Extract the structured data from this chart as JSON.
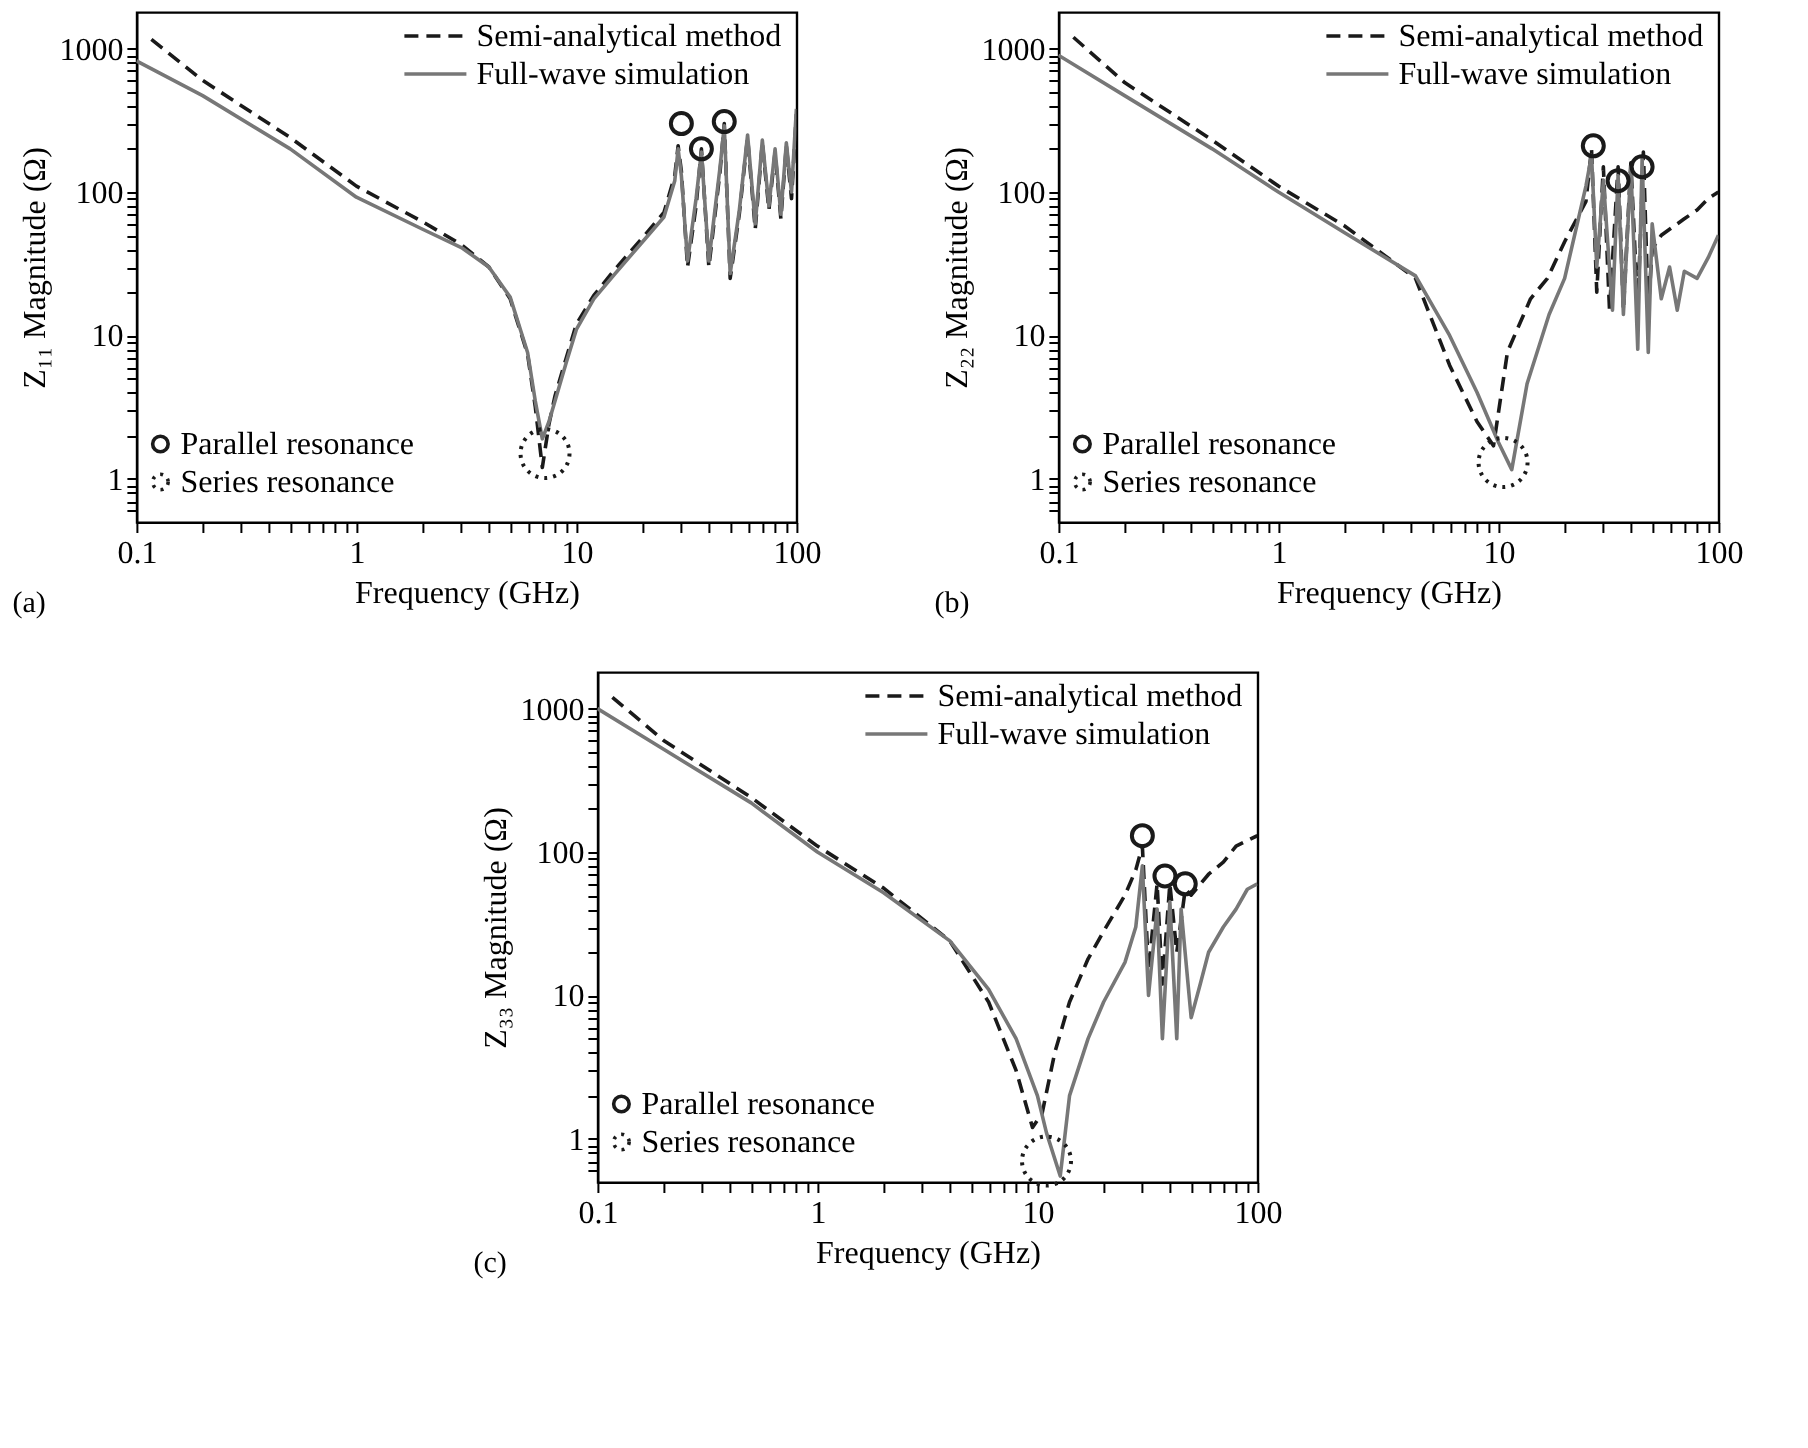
{
  "chart_data": [
    {
      "type": "line",
      "xlabel": "Frequency (GHz)",
      "ylabel": "Z₁₁ Magnitude (Ω)",
      "log": "xy",
      "legend": "top right",
      "annotations": [
        "(a)"
      ],
      "xlim": [
        0.1,
        100
      ],
      "ylim": [
        0.5,
        1800
      ],
      "xticks": [
        0.1,
        {
          "value": 0.2,
          "label": null
        },
        {
          "value": 0.3,
          "label": null
        },
        {
          "value": 0.4,
          "label": null
        },
        {
          "value": 0.5,
          "label": null
        },
        {
          "value": 0.6,
          "label": null
        },
        {
          "value": 0.7,
          "label": null
        },
        {
          "value": 0.8,
          "label": null
        },
        {
          "value": 0.9,
          "label": null
        },
        1,
        {
          "value": 2,
          "label": null
        },
        {
          "value": 3,
          "label": null
        },
        {
          "value": 4,
          "label": null
        },
        {
          "value": 5,
          "label": null
        },
        {
          "value": 6,
          "label": null
        },
        {
          "value": 7,
          "label": null
        },
        {
          "value": 8,
          "label": null
        },
        {
          "value": 9,
          "label": null
        },
        10,
        {
          "value": 20,
          "label": null
        },
        {
          "value": 30,
          "label": null
        },
        {
          "value": 40,
          "label": null
        },
        {
          "value": 50,
          "label": null
        },
        {
          "value": 60,
          "label": null
        },
        {
          "value": 70,
          "label": null
        },
        {
          "value": 80,
          "label": null
        },
        {
          "value": 90,
          "label": null
        },
        100
      ],
      "yticks": [
        {
          "value": 0.6,
          "label": null
        },
        {
          "value": 0.7,
          "label": null
        },
        {
          "value": 0.8,
          "label": null
        },
        {
          "value": 0.9,
          "label": null
        },
        1,
        {
          "value": 2,
          "label": null
        },
        {
          "value": 3,
          "label": null
        },
        {
          "value": 4,
          "label": null
        },
        {
          "value": 5,
          "label": null
        },
        {
          "value": 6,
          "label": null
        },
        {
          "value": 7,
          "label": null
        },
        {
          "value": 8,
          "label": null
        },
        {
          "value": 9,
          "label": null
        },
        10,
        {
          "value": 20,
          "label": null
        },
        {
          "value": 30,
          "label": null
        },
        {
          "value": 40,
          "label": null
        },
        {
          "value": 50,
          "label": null
        },
        {
          "value": 60,
          "label": null
        },
        {
          "value": 70,
          "label": null
        },
        {
          "value": 80,
          "label": null
        },
        {
          "value": 90,
          "label": null
        },
        100,
        {
          "value": 200,
          "label": null
        },
        {
          "value": 300,
          "label": null
        },
        {
          "value": 400,
          "label": null
        },
        {
          "value": 500,
          "label": null
        },
        {
          "value": 600,
          "label": null
        },
        {
          "value": 700,
          "label": null
        },
        {
          "value": 800,
          "label": null
        },
        {
          "value": 900,
          "label": null
        },
        1000
      ],
      "series": [
        {
          "name": "Semi-analytical method",
          "line_style": "dashed",
          "color": "#1a1a1a",
          "x": [
            0.117,
            0.2,
            0.5,
            1,
            2,
            3,
            4,
            5,
            6,
            6.5,
            7,
            7.5,
            8,
            9,
            10,
            12,
            15,
            20,
            25,
            28,
            29,
            30,
            32,
            35,
            37,
            40,
            45,
            47,
            50,
            55,
            60,
            65,
            70,
            75,
            80,
            85,
            90,
            95,
            100
          ],
          "values": [
            1160,
            600,
            240,
            110,
            62,
            43,
            30,
            18,
            7.4,
            3.2,
            1.2,
            2.4,
            3.8,
            7,
            12,
            19,
            29,
            48,
            72,
            130,
            210,
            140,
            30,
            80,
            200,
            30,
            140,
            300,
            25,
            70,
            240,
            55,
            220,
            75,
            190,
            65,
            210,
            90,
            350
          ]
        },
        {
          "name": "Full-wave simulation",
          "line_style": "solid",
          "color": "#777777",
          "x": [
            0.1,
            0.2,
            0.5,
            1,
            2,
            3,
            4,
            5,
            6,
            6.5,
            7,
            7.5,
            8,
            9,
            10,
            12,
            15,
            20,
            25,
            28,
            29,
            30,
            32,
            35,
            37,
            40,
            45,
            47,
            50,
            55,
            60,
            65,
            70,
            75,
            80,
            85,
            90,
            95,
            100
          ],
          "values": [
            820,
            470,
            200,
            92,
            55,
            41,
            30,
            18.5,
            7.6,
            3.5,
            1.9,
            2.5,
            3.5,
            6.5,
            11,
            18,
            27,
            45,
            67,
            120,
            200,
            130,
            33,
            90,
            190,
            33,
            150,
            290,
            27,
            74,
            250,
            60,
            230,
            80,
            200,
            70,
            220,
            100,
            380
          ]
        },
        {
          "name": "Parallel resonance",
          "type": "scatter",
          "marker": "circle",
          "line_style": "solid",
          "color": "#1a1a1a",
          "x": [
            30,
            37,
            47
          ],
          "values": [
            300,
            200,
            310
          ]
        },
        {
          "name": "Series resonance",
          "type": "scatter",
          "marker": "circle",
          "line_style": "dotted",
          "color": "#1a1a1a",
          "x": [
            7.2
          ],
          "values": [
            1.5
          ]
        }
      ]
    },
    {
      "type": "line",
      "xlabel": "Frequency (GHz)",
      "ylabel": "Z₂₂ Magnitude (Ω)",
      "log": "xy",
      "legend": "top right",
      "annotations": [
        "(b)"
      ],
      "xlim": [
        0.1,
        100
      ],
      "ylim": [
        0.5,
        1800
      ],
      "xticks": [
        0.1,
        {
          "value": 0.2,
          "label": null
        },
        {
          "value": 0.3,
          "label": null
        },
        {
          "value": 0.4,
          "label": null
        },
        {
          "value": 0.5,
          "label": null
        },
        {
          "value": 0.6,
          "label": null
        },
        {
          "value": 0.7,
          "label": null
        },
        {
          "value": 0.8,
          "label": null
        },
        {
          "value": 0.9,
          "label": null
        },
        1,
        {
          "value": 2,
          "label": null
        },
        {
          "value": 3,
          "label": null
        },
        {
          "value": 4,
          "label": null
        },
        {
          "value": 5,
          "label": null
        },
        {
          "value": 6,
          "label": null
        },
        {
          "value": 7,
          "label": null
        },
        {
          "value": 8,
          "label": null
        },
        {
          "value": 9,
          "label": null
        },
        10,
        {
          "value": 20,
          "label": null
        },
        {
          "value": 30,
          "label": null
        },
        {
          "value": 40,
          "label": null
        },
        {
          "value": 50,
          "label": null
        },
        {
          "value": 60,
          "label": null
        },
        {
          "value": 70,
          "label": null
        },
        {
          "value": 80,
          "label": null
        },
        {
          "value": 90,
          "label": null
        },
        100
      ],
      "yticks": [
        {
          "value": 0.6,
          "label": null
        },
        {
          "value": 0.7,
          "label": null
        },
        {
          "value": 0.8,
          "label": null
        },
        {
          "value": 0.9,
          "label": null
        },
        1,
        {
          "value": 2,
          "label": null
        },
        {
          "value": 3,
          "label": null
        },
        {
          "value": 4,
          "label": null
        },
        {
          "value": 5,
          "label": null
        },
        {
          "value": 6,
          "label": null
        },
        {
          "value": 7,
          "label": null
        },
        {
          "value": 8,
          "label": null
        },
        {
          "value": 9,
          "label": null
        },
        10,
        {
          "value": 20,
          "label": null
        },
        {
          "value": 30,
          "label": null
        },
        {
          "value": 40,
          "label": null
        },
        {
          "value": 50,
          "label": null
        },
        {
          "value": 60,
          "label": null
        },
        {
          "value": 70,
          "label": null
        },
        {
          "value": 80,
          "label": null
        },
        {
          "value": 90,
          "label": null
        },
        100,
        {
          "value": 200,
          "label": null
        },
        {
          "value": 300,
          "label": null
        },
        {
          "value": 400,
          "label": null
        },
        {
          "value": 500,
          "label": null
        },
        {
          "value": 600,
          "label": null
        },
        {
          "value": 700,
          "label": null
        },
        {
          "value": 800,
          "label": null
        },
        {
          "value": 900,
          "label": null
        },
        1000
      ],
      "series": [
        {
          "name": "Semi-analytical method",
          "line_style": "dashed",
          "color": "#1a1a1a",
          "x": [
            0.117,
            0.2,
            0.5,
            1,
            2,
            4.2,
            6,
            8,
            9.5,
            11,
            14,
            16.7,
            20,
            25,
            26.5,
            28,
            30,
            32,
            35,
            37,
            40,
            43,
            45.6,
            48,
            50,
            55,
            60,
            70,
            80,
            90,
            100
          ],
          "values": [
            1200,
            580,
            230,
            110,
            58,
            25,
            6.2,
            2.5,
            1.7,
            7.7,
            18,
            25,
            45,
            86,
            200,
            20,
            150,
            15,
            150,
            15,
            160,
            15,
            190,
            15,
            40,
            50,
            55,
            65,
            75,
            90,
            100
          ]
        },
        {
          "name": "Full-wave simulation",
          "line_style": "solid",
          "color": "#777777",
          "x": [
            0.1,
            0.2,
            0.5,
            1,
            2,
            4.2,
            6,
            8,
            10,
            11.5,
            13.5,
            17,
            20,
            25,
            26.5,
            28,
            30,
            33,
            35,
            37,
            40,
            43,
            45,
            48,
            50,
            55,
            60,
            65,
            70,
            80,
            90,
            100
          ],
          "values": [
            900,
            470,
            200,
            100,
            52,
            26,
            10,
            4,
            1.8,
            1.16,
            4.6,
            14,
            25,
            110,
            180,
            30,
            120,
            15,
            130,
            14,
            150,
            8,
            170,
            7.6,
            60,
            18,
            30,
            15,
            28,
            25,
            35,
            50
          ]
        },
        {
          "name": "Parallel resonance",
          "type": "scatter",
          "marker": "circle",
          "line_style": "solid",
          "color": "#1a1a1a",
          "x": [
            27,
            35,
            45
          ],
          "values": [
            210,
            120,
            150
          ]
        },
        {
          "name": "Series resonance",
          "type": "scatter",
          "marker": "circle",
          "line_style": "dotted",
          "color": "#1a1a1a",
          "x": [
            10.5
          ],
          "values": [
            1.3
          ]
        }
      ]
    },
    {
      "type": "line",
      "xlabel": "Frequency (GHz)",
      "ylabel": "Z₃₃ Magnitude (Ω)",
      "log": "xy",
      "legend": "top right",
      "annotations": [
        "(c)"
      ],
      "xlim": [
        0.1,
        100
      ],
      "ylim": [
        0.5,
        1800
      ],
      "xticks": [
        0.1,
        {
          "value": 0.2,
          "label": null
        },
        {
          "value": 0.3,
          "label": null
        },
        {
          "value": 0.4,
          "label": null
        },
        {
          "value": 0.5,
          "label": null
        },
        {
          "value": 0.6,
          "label": null
        },
        {
          "value": 0.7,
          "label": null
        },
        {
          "value": 0.8,
          "label": null
        },
        {
          "value": 0.9,
          "label": null
        },
        1,
        {
          "value": 2,
          "label": null
        },
        {
          "value": 3,
          "label": null
        },
        {
          "value": 4,
          "label": null
        },
        {
          "value": 5,
          "label": null
        },
        {
          "value": 6,
          "label": null
        },
        {
          "value": 7,
          "label": null
        },
        {
          "value": 8,
          "label": null
        },
        {
          "value": 9,
          "label": null
        },
        10,
        {
          "value": 20,
          "label": null
        },
        {
          "value": 30,
          "label": null
        },
        {
          "value": 40,
          "label": null
        },
        {
          "value": 50,
          "label": null
        },
        {
          "value": 60,
          "label": null
        },
        {
          "value": 70,
          "label": null
        },
        {
          "value": 80,
          "label": null
        },
        {
          "value": 90,
          "label": null
        },
        100
      ],
      "yticks": [
        {
          "value": 0.6,
          "label": null
        },
        {
          "value": 0.7,
          "label": null
        },
        {
          "value": 0.8,
          "label": null
        },
        {
          "value": 0.9,
          "label": null
        },
        1,
        {
          "value": 2,
          "label": null
        },
        {
          "value": 3,
          "label": null
        },
        {
          "value": 4,
          "label": null
        },
        {
          "value": 5,
          "label": null
        },
        {
          "value": 6,
          "label": null
        },
        {
          "value": 7,
          "label": null
        },
        {
          "value": 8,
          "label": null
        },
        {
          "value": 9,
          "label": null
        },
        10,
        {
          "value": 20,
          "label": null
        },
        {
          "value": 30,
          "label": null
        },
        {
          "value": 40,
          "label": null
        },
        {
          "value": 50,
          "label": null
        },
        {
          "value": 60,
          "label": null
        },
        {
          "value": 70,
          "label": null
        },
        {
          "value": 80,
          "label": null
        },
        {
          "value": 90,
          "label": null
        },
        100,
        {
          "value": 200,
          "label": null
        },
        {
          "value": 300,
          "label": null
        },
        {
          "value": 400,
          "label": null
        },
        {
          "value": 500,
          "label": null
        },
        {
          "value": 600,
          "label": null
        },
        {
          "value": 700,
          "label": null
        },
        {
          "value": 800,
          "label": null
        },
        {
          "value": 900,
          "label": null
        },
        1000
      ],
      "series": [
        {
          "name": "Semi-analytical method",
          "line_style": "dashed",
          "color": "#1a1a1a",
          "x": [
            0.117,
            0.2,
            0.5,
            1,
            2,
            4,
            6,
            8,
            9.5,
            10.5,
            12,
            14,
            17,
            20,
            25,
            28,
            30,
            32,
            35,
            37,
            40,
            43,
            47,
            50,
            60,
            70,
            80,
            90,
            100
          ],
          "values": [
            1200,
            600,
            240,
            110,
            56,
            24,
            9,
            3,
            1.2,
            1.5,
            4,
            9,
            18,
            28,
            50,
            75,
            110,
            15,
            60,
            12,
            60,
            20,
            55,
            50,
            70,
            85,
            110,
            120,
            130
          ]
        },
        {
          "name": "Full-wave simulation",
          "line_style": "solid",
          "color": "#777777",
          "x": [
            0.1,
            0.2,
            0.5,
            1,
            2,
            4,
            6,
            8,
            10,
            11,
            12.7,
            14,
            17,
            20,
            25,
            28,
            30,
            32,
            35,
            37,
            40,
            43,
            45,
            50,
            55,
            60,
            70,
            80,
            90,
            100
          ],
          "values": [
            1000,
            520,
            220,
            100,
            52,
            24,
            11,
            5,
            2,
            1.1,
            0.55,
            2,
            5,
            9,
            17,
            30,
            80,
            10,
            40,
            5,
            45,
            5,
            40,
            7,
            12,
            20,
            30,
            40,
            55,
            60
          ]
        },
        {
          "name": "Parallel resonance",
          "type": "scatter",
          "marker": "circle",
          "line_style": "solid",
          "color": "#1a1a1a",
          "x": [
            30,
            38,
            47
          ],
          "values": [
            130,
            68,
            60
          ]
        },
        {
          "name": "Series resonance",
          "type": "scatter",
          "marker": "circle",
          "line_style": "dotted",
          "color": "#1a1a1a",
          "x": [
            11
          ],
          "values": [
            0.7
          ]
        }
      ]
    }
  ]
}
